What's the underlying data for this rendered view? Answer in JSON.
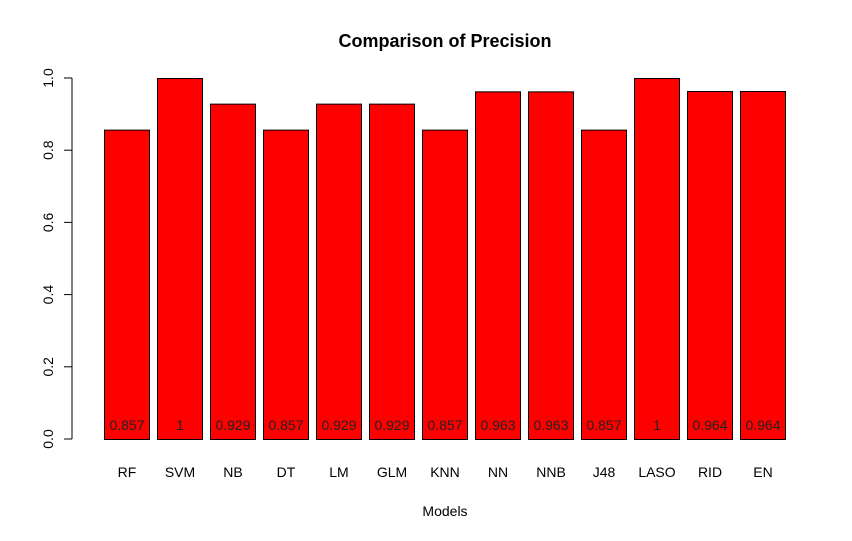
{
  "chart_data": {
    "type": "bar",
    "title": "Comparison of Precision",
    "xlabel": "Models",
    "ylabel": "",
    "categories": [
      "RF",
      "SVM",
      "NB",
      "DT",
      "LM",
      "GLM",
      "KNN",
      "NN",
      "NNB",
      "J48",
      "LASO",
      "RID",
      "EN"
    ],
    "values": [
      0.857,
      1,
      0.929,
      0.857,
      0.929,
      0.929,
      0.857,
      0.963,
      0.963,
      0.857,
      1,
      0.964,
      0.964
    ],
    "data_labels": [
      "0.857",
      "1",
      "0.929",
      "0.857",
      "0.929",
      "0.929",
      "0.857",
      "0.963",
      "0.963",
      "0.857",
      "1",
      "0.964",
      "0.964"
    ],
    "yticks": [
      "0.0",
      "0.2",
      "0.4",
      "0.6",
      "0.8",
      "1.0"
    ],
    "ylim": [
      0,
      1
    ],
    "grid": false,
    "legend": "none",
    "bar_color": "#ff0000",
    "bar_border_color": "#000000"
  }
}
